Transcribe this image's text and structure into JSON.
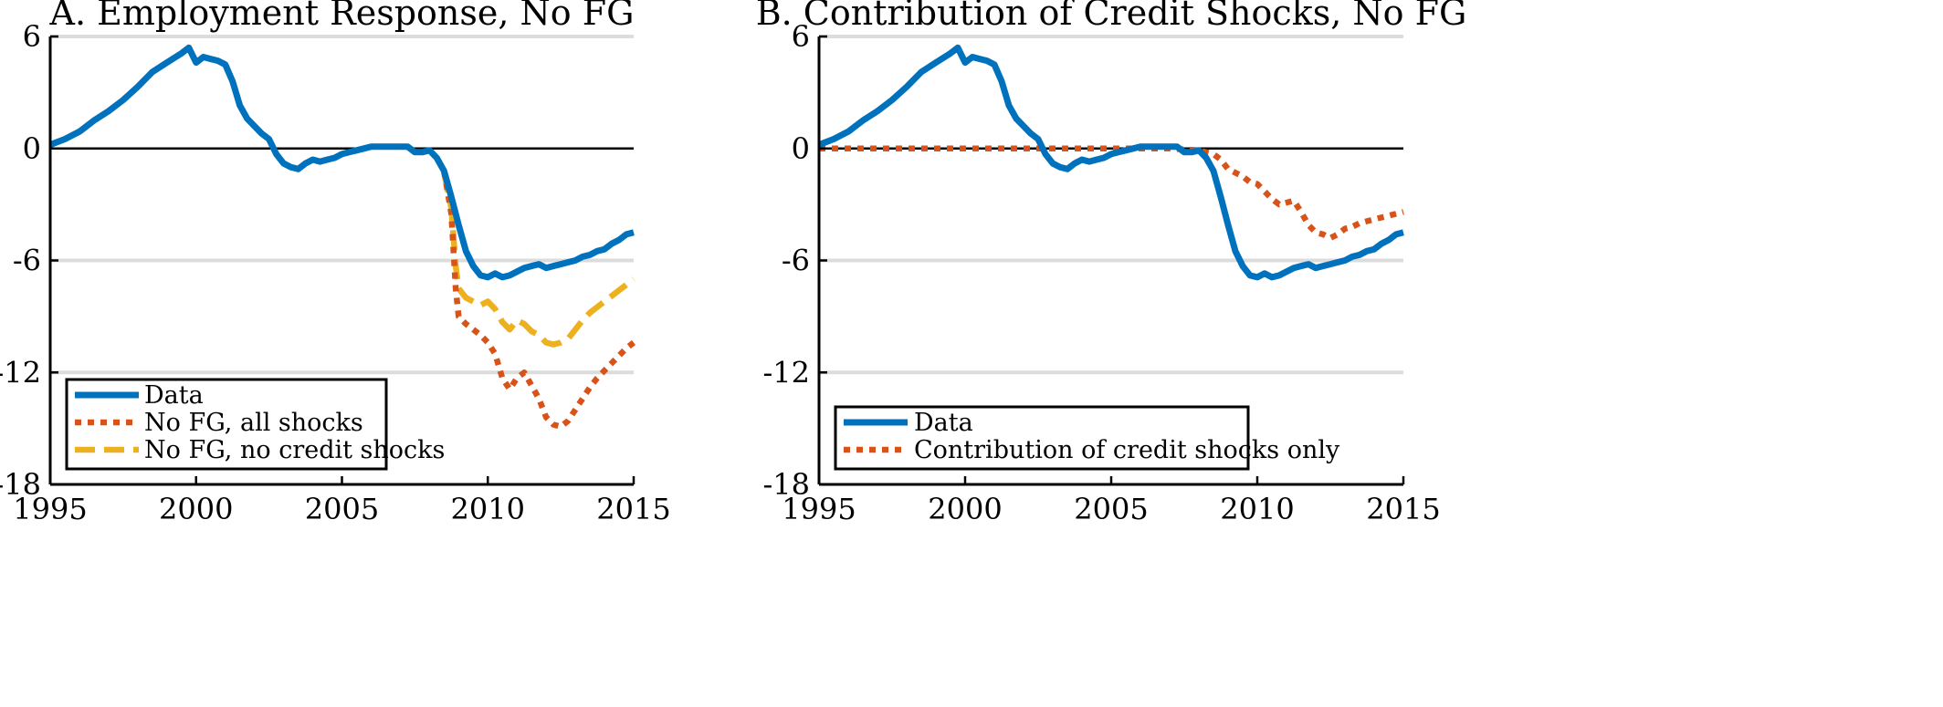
{
  "chart_data": [
    {
      "type": "line",
      "title": "A. Employment Response, No FG",
      "xlabel": "",
      "ylabel": "",
      "xlim": [
        1995,
        2015
      ],
      "ylim": [
        -18,
        6
      ],
      "xticks": [
        "1995",
        "2000",
        "2005",
        "2010",
        "2015"
      ],
      "yticks": [
        "6",
        "0",
        "-6",
        "-12",
        "-18"
      ],
      "gridlines_y": [
        6,
        -6,
        -12
      ],
      "zero_line": true,
      "legend_position": "bottom-left",
      "series": [
        {
          "name": "Data",
          "style": "solid",
          "color": "#0072BD",
          "x": [
            1995.0,
            1995.5,
            1996.0,
            1996.5,
            1997.0,
            1997.5,
            1998.0,
            1998.5,
            1999.0,
            1999.5,
            1999.75,
            2000.0,
            2000.25,
            2000.5,
            2000.75,
            2001.0,
            2001.25,
            2001.5,
            2001.75,
            2002.0,
            2002.25,
            2002.5,
            2002.75,
            2003.0,
            2003.25,
            2003.5,
            2003.75,
            2004.0,
            2004.25,
            2004.5,
            2004.75,
            2005.0,
            2005.25,
            2005.5,
            2005.75,
            2006.0,
            2006.25,
            2006.5,
            2006.75,
            2007.0,
            2007.25,
            2007.5,
            2007.75,
            2008.0,
            2008.25,
            2008.5,
            2008.75,
            2009.0,
            2009.25,
            2009.5,
            2009.75,
            2010.0,
            2010.25,
            2010.5,
            2010.75,
            2011.0,
            2011.25,
            2011.5,
            2011.75,
            2012.0,
            2012.25,
            2012.5,
            2012.75,
            2013.0,
            2013.25,
            2013.5,
            2013.75,
            2014.0,
            2014.25,
            2014.5,
            2014.75,
            2015.0
          ],
          "y": [
            0.2,
            0.5,
            0.9,
            1.5,
            2.0,
            2.6,
            3.3,
            4.1,
            4.6,
            5.1,
            5.4,
            4.6,
            4.9,
            4.8,
            4.7,
            4.5,
            3.6,
            2.3,
            1.6,
            1.2,
            0.8,
            0.5,
            -0.3,
            -0.8,
            -1.0,
            -1.1,
            -0.8,
            -0.6,
            -0.7,
            -0.6,
            -0.5,
            -0.3,
            -0.2,
            -0.1,
            0.0,
            0.1,
            0.1,
            0.1,
            0.1,
            0.1,
            0.1,
            -0.2,
            -0.2,
            -0.1,
            -0.5,
            -1.2,
            -2.6,
            -4.1,
            -5.5,
            -6.3,
            -6.8,
            -6.9,
            -6.7,
            -6.9,
            -6.8,
            -6.6,
            -6.4,
            -6.3,
            -6.2,
            -6.4,
            -6.3,
            -6.2,
            -6.1,
            -6.0,
            -5.8,
            -5.7,
            -5.5,
            -5.4,
            -5.1,
            -4.9,
            -4.6,
            -4.5
          ]
        },
        {
          "name": "No FG, all shocks",
          "style": "dotted",
          "color": "#D95319",
          "x": [
            2008.5,
            2008.75,
            2008.9,
            2009.0,
            2009.25,
            2009.5,
            2009.75,
            2010.0,
            2010.25,
            2010.5,
            2010.75,
            2011.0,
            2011.25,
            2011.5,
            2011.75,
            2012.0,
            2012.25,
            2012.5,
            2012.75,
            2013.0,
            2013.25,
            2013.5,
            2013.75,
            2014.0,
            2014.25,
            2014.5,
            2014.75,
            2015.0
          ],
          "y": [
            -1.2,
            -3.5,
            -7.5,
            -9.0,
            -9.4,
            -9.7,
            -10.0,
            -10.4,
            -11.0,
            -12.3,
            -12.9,
            -12.3,
            -12.0,
            -12.7,
            -13.4,
            -14.4,
            -14.8,
            -14.9,
            -14.6,
            -14.0,
            -13.4,
            -12.8,
            -12.3,
            -11.9,
            -11.5,
            -11.1,
            -10.7,
            -10.4
          ]
        },
        {
          "name": "No FG, no credit shocks",
          "style": "dashed",
          "color": "#EDB120",
          "x": [
            2008.5,
            2008.75,
            2008.9,
            2009.0,
            2009.25,
            2009.5,
            2009.75,
            2010.0,
            2010.25,
            2010.5,
            2010.75,
            2011.0,
            2011.25,
            2011.5,
            2011.75,
            2012.0,
            2012.25,
            2012.5,
            2012.75,
            2013.0,
            2013.25,
            2013.5,
            2013.75,
            2014.0,
            2014.25,
            2014.5,
            2014.75,
            2015.0
          ],
          "y": [
            -1.3,
            -3.2,
            -6.3,
            -7.5,
            -8.0,
            -8.2,
            -8.4,
            -8.2,
            -8.6,
            -9.3,
            -9.7,
            -9.2,
            -9.4,
            -9.8,
            -10.0,
            -10.4,
            -10.5,
            -10.4,
            -10.2,
            -9.7,
            -9.2,
            -8.8,
            -8.5,
            -8.2,
            -7.9,
            -7.6,
            -7.3,
            -7.0
          ]
        }
      ]
    },
    {
      "type": "line",
      "title": "B. Contribution of Credit Shocks, No FG",
      "xlabel": "",
      "ylabel": "",
      "xlim": [
        1995,
        2015
      ],
      "ylim": [
        -18,
        6
      ],
      "xticks": [
        "1995",
        "2000",
        "2005",
        "2010",
        "2015"
      ],
      "yticks": [
        "6",
        "0",
        "-6",
        "-12",
        "-18"
      ],
      "gridlines_y": [
        6,
        -6,
        -12
      ],
      "zero_line": true,
      "legend_position": "bottom-left",
      "series": [
        {
          "name": "Data",
          "style": "solid",
          "color": "#0072BD",
          "x": [
            1995.0,
            1995.5,
            1996.0,
            1996.5,
            1997.0,
            1997.5,
            1998.0,
            1998.5,
            1999.0,
            1999.5,
            1999.75,
            2000.0,
            2000.25,
            2000.5,
            2000.75,
            2001.0,
            2001.25,
            2001.5,
            2001.75,
            2002.0,
            2002.25,
            2002.5,
            2002.75,
            2003.0,
            2003.25,
            2003.5,
            2003.75,
            2004.0,
            2004.25,
            2004.5,
            2004.75,
            2005.0,
            2005.25,
            2005.5,
            2005.75,
            2006.0,
            2006.25,
            2006.5,
            2006.75,
            2007.0,
            2007.25,
            2007.5,
            2007.75,
            2008.0,
            2008.25,
            2008.5,
            2008.75,
            2009.0,
            2009.25,
            2009.5,
            2009.75,
            2010.0,
            2010.25,
            2010.5,
            2010.75,
            2011.0,
            2011.25,
            2011.5,
            2011.75,
            2012.0,
            2012.25,
            2012.5,
            2012.75,
            2013.0,
            2013.25,
            2013.5,
            2013.75,
            2014.0,
            2014.25,
            2014.5,
            2014.75,
            2015.0
          ],
          "y": [
            0.2,
            0.5,
            0.9,
            1.5,
            2.0,
            2.6,
            3.3,
            4.1,
            4.6,
            5.1,
            5.4,
            4.6,
            4.9,
            4.8,
            4.7,
            4.5,
            3.6,
            2.3,
            1.6,
            1.2,
            0.8,
            0.5,
            -0.3,
            -0.8,
            -1.0,
            -1.1,
            -0.8,
            -0.6,
            -0.7,
            -0.6,
            -0.5,
            -0.3,
            -0.2,
            -0.1,
            0.0,
            0.1,
            0.1,
            0.1,
            0.1,
            0.1,
            0.1,
            -0.2,
            -0.2,
            -0.1,
            -0.5,
            -1.2,
            -2.6,
            -4.1,
            -5.5,
            -6.3,
            -6.8,
            -6.9,
            -6.7,
            -6.9,
            -6.8,
            -6.6,
            -6.4,
            -6.3,
            -6.2,
            -6.4,
            -6.3,
            -6.2,
            -6.1,
            -6.0,
            -5.8,
            -5.7,
            -5.5,
            -5.4,
            -5.1,
            -4.9,
            -4.6,
            -4.5
          ]
        },
        {
          "name": "Contribution of credit shocks only",
          "style": "dotted",
          "color": "#D95319",
          "x": [
            1995.0,
            2007.0,
            2007.5,
            2008.0,
            2008.5,
            2008.75,
            2009.0,
            2009.5,
            2009.75,
            2010.0,
            2010.25,
            2010.5,
            2010.75,
            2011.0,
            2011.25,
            2011.5,
            2011.75,
            2012.0,
            2012.25,
            2012.5,
            2012.75,
            2013.0,
            2013.25,
            2013.5,
            2013.75,
            2014.0,
            2014.25,
            2014.5,
            2014.75,
            2015.0
          ],
          "y": [
            0.0,
            0.0,
            -0.05,
            -0.1,
            -0.3,
            -0.6,
            -1.1,
            -1.5,
            -1.8,
            -1.9,
            -2.3,
            -2.7,
            -3.0,
            -2.9,
            -2.8,
            -3.4,
            -4.1,
            -4.5,
            -4.6,
            -4.8,
            -4.6,
            -4.3,
            -4.2,
            -4.0,
            -3.9,
            -3.8,
            -3.7,
            -3.6,
            -3.5,
            -3.4
          ]
        }
      ]
    }
  ]
}
